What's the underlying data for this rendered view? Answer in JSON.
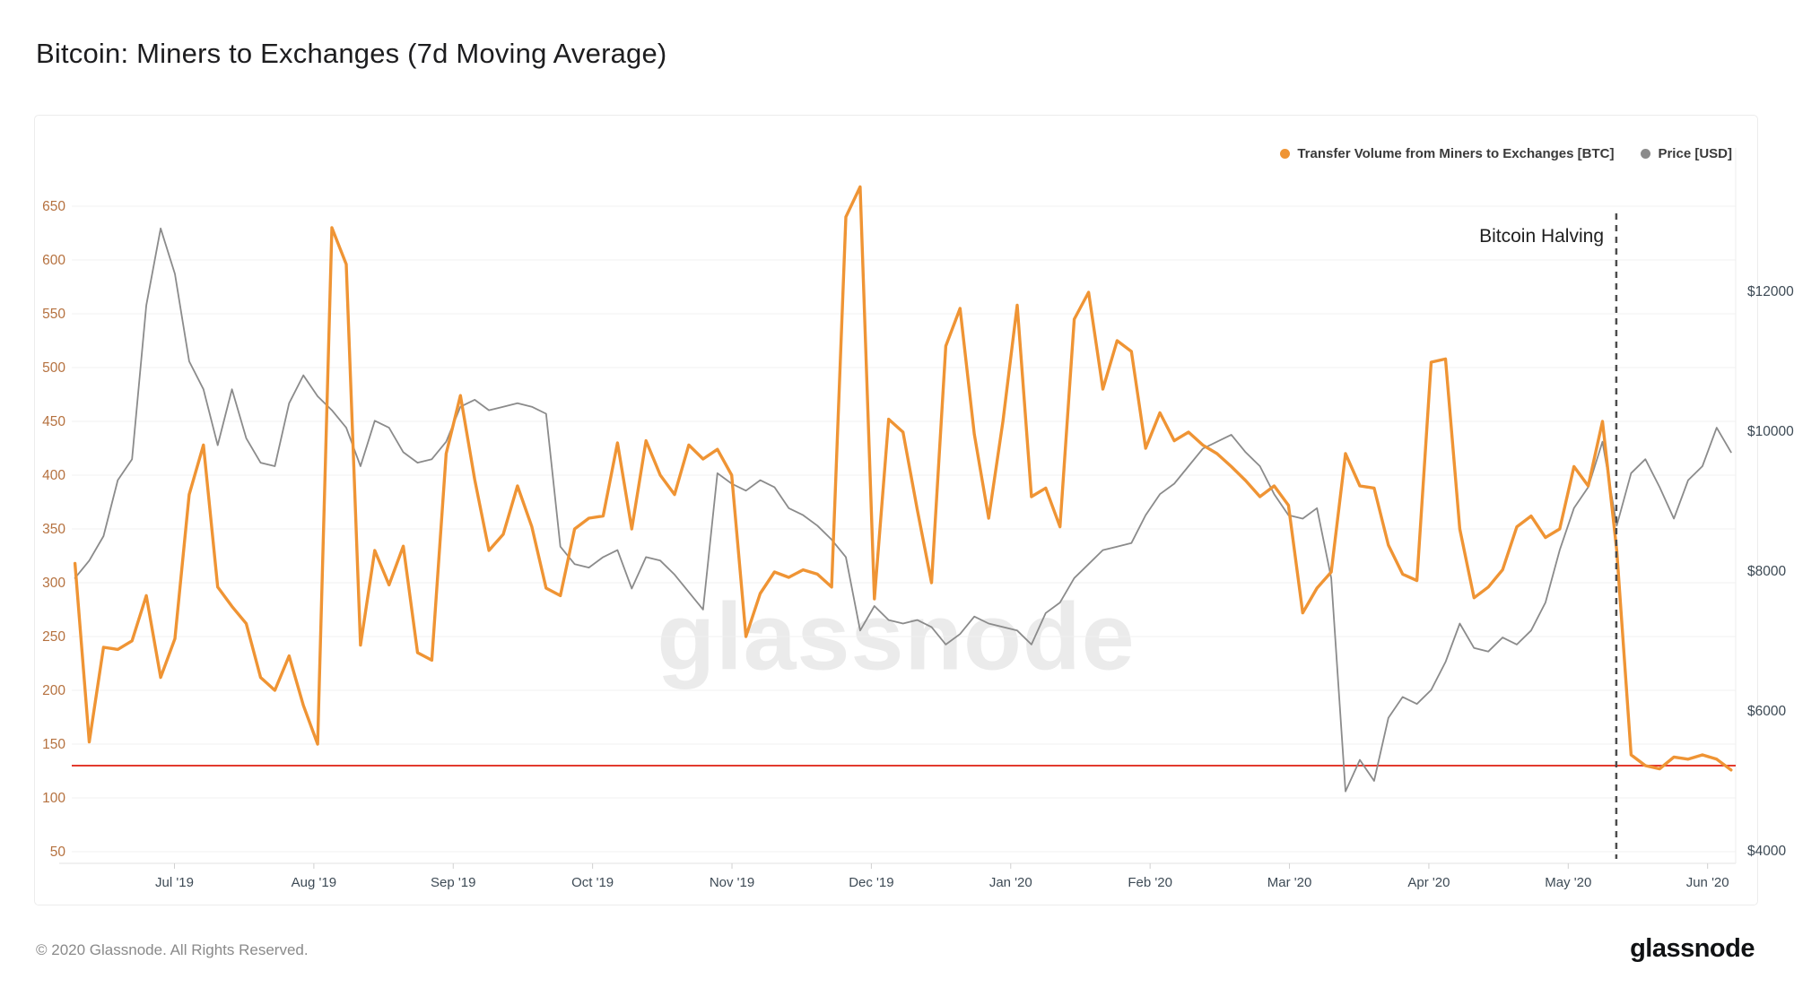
{
  "page": {
    "title": "Bitcoin: Miners to Exchanges (7d Moving Average)",
    "watermark": "glassnode",
    "footer_copyright": "© 2020 Glassnode. All Rights Reserved.",
    "brand_logo": "glassnode"
  },
  "legend": {
    "items": [
      {
        "label": "Transfer Volume from Miners to Exchanges [BTC]",
        "color": "#ef9434"
      },
      {
        "label": "Price [USD]",
        "color": "#8b8b8b"
      }
    ]
  },
  "annotation": {
    "label": "Bitcoin Halving"
  },
  "chart_data": {
    "type": "line",
    "title": "Bitcoin: Miners to Exchanges (7d Moving Average)",
    "x_axis": {
      "labels": [
        "Jul '19",
        "Aug '19",
        "Sep '19",
        "Oct '19",
        "Nov '19",
        "Dec '19",
        "Jan '20",
        "Feb '20",
        "Mar '20",
        "Apr '20",
        "May '20",
        "Jun '20"
      ],
      "tick_color": "#3d4a55"
    },
    "left_axis": {
      "title": "Transfer Volume [BTC]",
      "ticks": [
        650,
        600,
        550,
        500,
        450,
        400,
        350,
        300,
        250,
        200,
        150,
        100,
        50
      ],
      "range": [
        50,
        650
      ],
      "tick_color": "#b5713f"
    },
    "right_axis": {
      "title": "Price [USD]",
      "ticks": [
        {
          "label": "$12000",
          "value": 12000
        },
        {
          "label": "$10000",
          "value": 10000
        },
        {
          "label": "$8000",
          "value": 8000
        },
        {
          "label": "$6000",
          "value": 6000
        },
        {
          "label": "$4000",
          "value": 4000
        }
      ],
      "range": [
        4000,
        13000
      ],
      "tick_color": "#3d4a55"
    },
    "grid": "horizontal",
    "legend_position": "top-right",
    "x_start_month": -0.714,
    "x_step_month": 0.10243,
    "halving_line_month": 10.345,
    "halving_line_color": "#4d4d4d",
    "red_line": {
      "value": 130,
      "color": "#e23a2e"
    },
    "series": [
      {
        "name": "Price [USD]",
        "axis": "right",
        "color": "#8b8b8b",
        "stroke_width": 1.8,
        "values": [
          7900,
          8150,
          8500,
          9300,
          9600,
          11800,
          12900,
          12250,
          11000,
          10600,
          9800,
          10600,
          9900,
          9550,
          9500,
          10400,
          10800,
          10500,
          10300,
          10050,
          9500,
          10150,
          10050,
          9700,
          9550,
          9600,
          9850,
          10350,
          10450,
          10300,
          10350,
          10400,
          10350,
          10250,
          8350,
          8100,
          8050,
          8200,
          8300,
          7750,
          8200,
          8150,
          7950,
          7700,
          7450,
          9400,
          9250,
          9150,
          9300,
          9200,
          8900,
          8800,
          8650,
          8450,
          8200,
          7150,
          7500,
          7300,
          7250,
          7300,
          7200,
          6950,
          7100,
          7350,
          7250,
          7200,
          7150,
          6950,
          7400,
          7550,
          7900,
          8100,
          8300,
          8350,
          8400,
          8800,
          9100,
          9250,
          9500,
          9750,
          9850,
          9950,
          9700,
          9500,
          9100,
          8800,
          8750,
          8900,
          7900,
          4850,
          5300,
          5000,
          5900,
          6200,
          6100,
          6300,
          6700,
          7250,
          6900,
          6850,
          7050,
          6950,
          7150,
          7550,
          8300,
          8900,
          9200,
          9850,
          8650,
          9400,
          9600,
          9200,
          8750,
          9300,
          9500,
          10050,
          9700
        ]
      },
      {
        "name": "Transfer Volume from Miners to Exchanges [BTC]",
        "axis": "left",
        "color": "#ef9434",
        "stroke_width": 3.4,
        "values": [
          318,
          152,
          240,
          238,
          246,
          288,
          212,
          248,
          382,
          428,
          296,
          278,
          262,
          212,
          200,
          232,
          186,
          150,
          630,
          596,
          242,
          330,
          298,
          334,
          235,
          228,
          420,
          474,
          396,
          330,
          345,
          390,
          352,
          295,
          288,
          350,
          360,
          362,
          430,
          350,
          432,
          400,
          382,
          428,
          415,
          424,
          400,
          250,
          290,
          310,
          305,
          312,
          308,
          296,
          640,
          668,
          285,
          452,
          440,
          368,
          300,
          520,
          555,
          438,
          360,
          450,
          558,
          380,
          388,
          352,
          545,
          570,
          480,
          525,
          515,
          425,
          458,
          432,
          440,
          428,
          420,
          408,
          395,
          380,
          390,
          372,
          272,
          295,
          310,
          420,
          390,
          388,
          335,
          308,
          302,
          505,
          508,
          350,
          286,
          296,
          312,
          352,
          362,
          342,
          350,
          408,
          390,
          450,
          330,
          140,
          130,
          127,
          138,
          136,
          140,
          136,
          126
        ]
      }
    ]
  }
}
